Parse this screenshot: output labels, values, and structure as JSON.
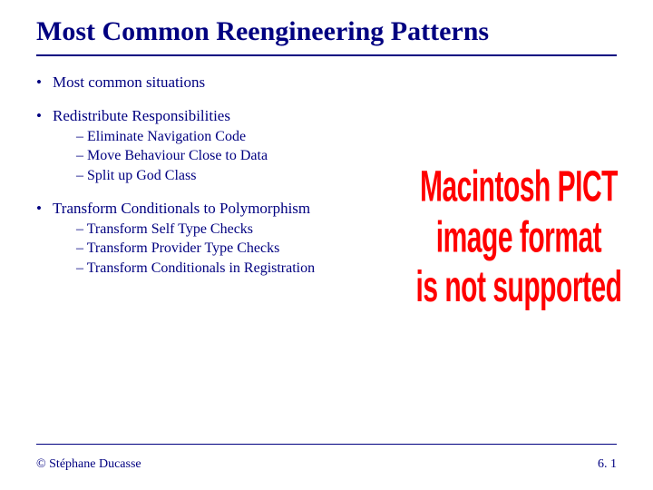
{
  "colors": {
    "text": "#000080",
    "background": "#ffffff",
    "placeholder_text": "#ff0000",
    "rule": "#000080"
  },
  "typography": {
    "body_family": "Comic Sans MS",
    "title_fontsize_pt": 30,
    "body_fontsize_pt": 17,
    "sub_fontsize_pt": 16,
    "footer_fontsize_pt": 14,
    "placeholder_family": "Arial",
    "placeholder_fontsize_pt": 30,
    "placeholder_weight": "bold"
  },
  "title": "Most Common Reengineering Patterns",
  "bullets": {
    "b1": "Most common situations",
    "b2": "Redistribute Responsibilities",
    "b2_sub": {
      "s1": "Eliminate Navigation Code",
      "s2": "Move Behaviour Close to Data",
      "s3": "Split up God Class"
    },
    "b3": "Transform Conditionals to Polymorphism",
    "b3_sub": {
      "s1": "Transform Self Type Checks",
      "s2": "Transform Provider Type Checks",
      "s3": "Transform Conditionals in Registration"
    }
  },
  "placeholder": {
    "line1": "Macintosh PICT",
    "line2": "image format",
    "line3": "is not supported"
  },
  "footer": {
    "left": "© Stéphane Ducasse",
    "right": "6. 1"
  }
}
